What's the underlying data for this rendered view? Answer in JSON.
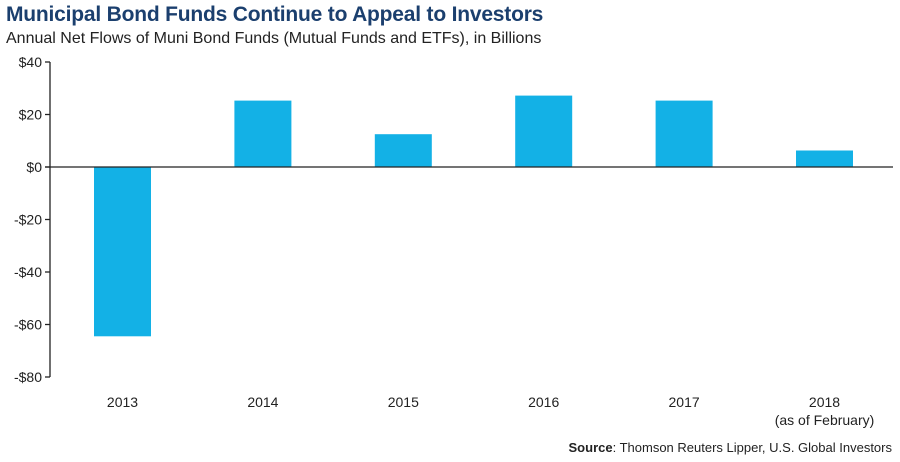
{
  "header": {
    "title": "Municipal Bond Funds Continue to Appeal to Investors",
    "subtitle": "Annual Net Flows of Muni Bond Funds (Mutual Funds and ETFs), in Billions"
  },
  "source": {
    "label": "Source",
    "text": ": Thomson Reuters Lipper, U.S. Global Investors"
  },
  "colors": {
    "bar": "#13b1e6",
    "title": "#1b3f6e",
    "axis": "#222222"
  },
  "chart_data": {
    "type": "bar",
    "categories": [
      "2013",
      "2014",
      "2015",
      "2016",
      "2017",
      "2018"
    ],
    "category_sublabels": [
      "",
      "",
      "",
      "",
      "",
      "(as of February)"
    ],
    "values": [
      -64.5,
      25.3,
      12.5,
      27.2,
      25.3,
      6.3
    ],
    "ylim": [
      -80,
      40
    ],
    "yticks": [
      40,
      20,
      0,
      -20,
      -40,
      -60,
      -80
    ],
    "ytick_labels": [
      "$40",
      "$20",
      "$0",
      "-$20",
      "-$40",
      "-$60",
      "-$80"
    ],
    "grid": false,
    "legend": "none"
  }
}
